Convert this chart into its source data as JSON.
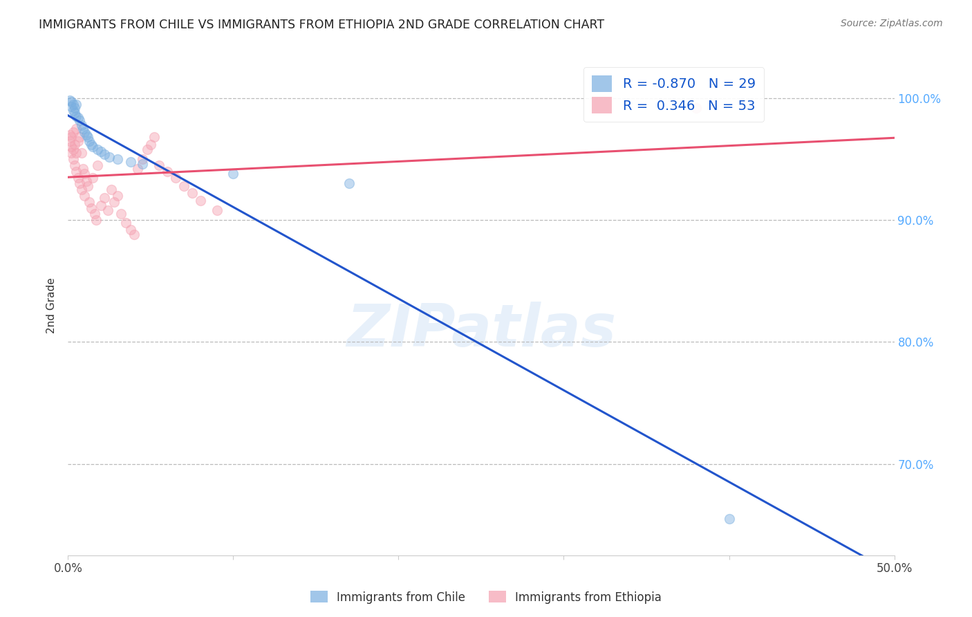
{
  "title": "IMMIGRANTS FROM CHILE VS IMMIGRANTS FROM ETHIOPIA 2ND GRADE CORRELATION CHART",
  "source": "Source: ZipAtlas.com",
  "ylabel": "2nd Grade",
  "xmin": 0.0,
  "xmax": 0.5,
  "ymin": 0.625,
  "ymax": 1.035,
  "chile_R": -0.87,
  "chile_N": 29,
  "ethiopia_R": 0.346,
  "ethiopia_N": 53,
  "chile_color": "#7AAFE0",
  "ethiopia_color": "#F4A0B0",
  "chile_line_color": "#2255CC",
  "ethiopia_line_color": "#E85070",
  "ytick_vals": [
    0.7,
    0.8,
    0.9,
    1.0
  ],
  "ytick_labels": [
    "70.0%",
    "80.0%",
    "90.0%",
    "100.0%"
  ],
  "xtick_vals": [
    0.0,
    0.1,
    0.2,
    0.3,
    0.4,
    0.5
  ],
  "xtick_labels": [
    "0.0%",
    "",
    "",
    "",
    "",
    "50.0%"
  ],
  "chile_scatter_x": [
    0.001,
    0.002,
    0.002,
    0.003,
    0.003,
    0.004,
    0.004,
    0.005,
    0.005,
    0.006,
    0.007,
    0.008,
    0.009,
    0.01,
    0.011,
    0.012,
    0.013,
    0.014,
    0.015,
    0.018,
    0.02,
    0.022,
    0.025,
    0.03,
    0.038,
    0.045,
    0.1,
    0.17,
    0.4
  ],
  "chile_scatter_y": [
    0.998,
    0.997,
    0.993,
    0.995,
    0.99,
    0.992,
    0.988,
    0.995,
    0.985,
    0.984,
    0.982,
    0.978,
    0.975,
    0.972,
    0.97,
    0.968,
    0.965,
    0.962,
    0.96,
    0.958,
    0.956,
    0.954,
    0.952,
    0.95,
    0.948,
    0.946,
    0.938,
    0.93,
    0.655
  ],
  "ethiopia_scatter_x": [
    0.001,
    0.001,
    0.002,
    0.002,
    0.002,
    0.003,
    0.003,
    0.003,
    0.004,
    0.004,
    0.005,
    0.005,
    0.005,
    0.006,
    0.006,
    0.007,
    0.007,
    0.008,
    0.008,
    0.009,
    0.01,
    0.01,
    0.011,
    0.012,
    0.013,
    0.014,
    0.015,
    0.016,
    0.017,
    0.018,
    0.02,
    0.022,
    0.024,
    0.026,
    0.028,
    0.03,
    0.032,
    0.035,
    0.038,
    0.04,
    0.042,
    0.045,
    0.048,
    0.05,
    0.052,
    0.055,
    0.06,
    0.065,
    0.07,
    0.075,
    0.08,
    0.09,
    0.38
  ],
  "ethiopia_scatter_y": [
    0.97,
    0.965,
    0.968,
    0.96,
    0.955,
    0.972,
    0.958,
    0.95,
    0.962,
    0.945,
    0.975,
    0.955,
    0.94,
    0.965,
    0.935,
    0.968,
    0.93,
    0.955,
    0.925,
    0.942,
    0.938,
    0.92,
    0.932,
    0.928,
    0.915,
    0.91,
    0.935,
    0.905,
    0.9,
    0.945,
    0.912,
    0.918,
    0.908,
    0.925,
    0.915,
    0.92,
    0.905,
    0.898,
    0.892,
    0.888,
    0.942,
    0.95,
    0.958,
    0.962,
    0.968,
    0.945,
    0.94,
    0.935,
    0.928,
    0.922,
    0.916,
    0.908,
    0.992
  ]
}
